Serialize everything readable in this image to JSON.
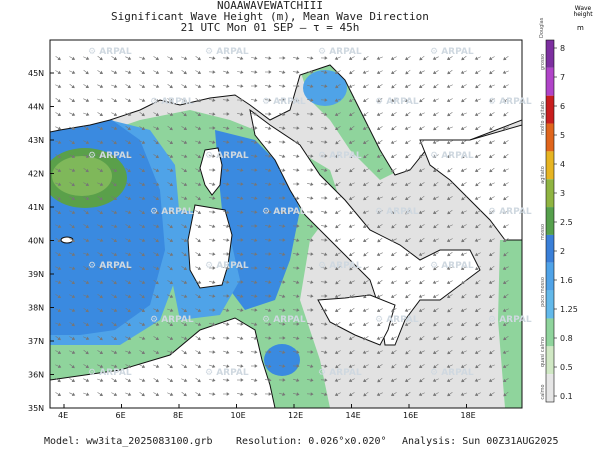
{
  "title": {
    "line1": "NOAAWAVEWATCHIII",
    "line2": "Significant Wave Height (m), Mean Wave Direction",
    "line3": "21 UTC Mon 01 SEP  –  τ = 45h"
  },
  "lat_labels": [
    "45N",
    "44N",
    "43N",
    "42N",
    "41N",
    "40N",
    "39N",
    "38N",
    "37N",
    "36N",
    "35N"
  ],
  "lon_labels": [
    "4E",
    "6E",
    "8E",
    "10E",
    "12E",
    "14E",
    "16E",
    "18E"
  ],
  "watermark": "ARPAL",
  "legend": {
    "title": "Wave height",
    "unit": "m",
    "top_label": "Douglas",
    "ticks": [
      "8",
      "7",
      "6",
      "5",
      "4",
      "3",
      "2.5",
      "2",
      "1.6",
      "1.25",
      "0.8",
      "0.5",
      "0.1"
    ],
    "descriptors": [
      "grosso",
      "molto agitato",
      "agitato",
      "mosso",
      "poco mosso",
      "quasi calmo",
      "calmo"
    ],
    "colors": [
      "#7d2fa0",
      "#b044c8",
      "#c81e1e",
      "#e0651c",
      "#e6b422",
      "#8fb441",
      "#56a04c",
      "#3a7fd8",
      "#4fa3e8",
      "#63b9ea",
      "#8fd49c",
      "#d0e8c4",
      "#e6e6e6"
    ]
  },
  "footer": {
    "model": "Model:  ww3ita_2025083100.grb",
    "resolution": "Resolution: 0.026°x0.020°",
    "analysis": "Analysis: Sun 00Z31AUG2025"
  }
}
